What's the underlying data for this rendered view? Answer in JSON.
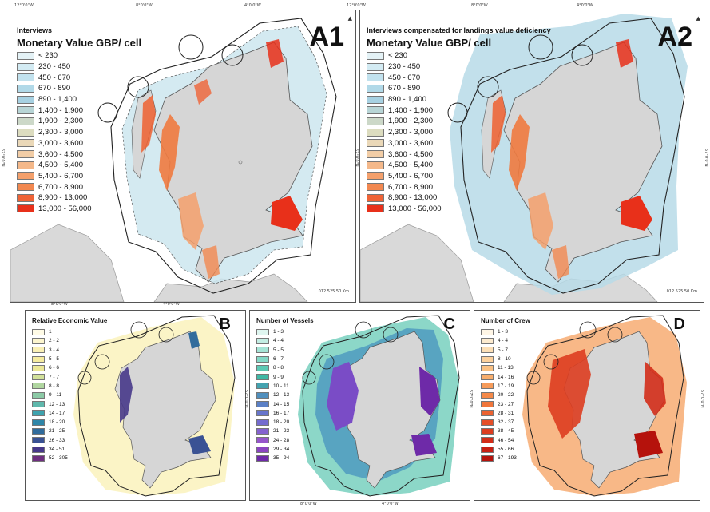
{
  "ticks": {
    "top_a1": [
      "12°0'0\"W",
      "8°0'0\"W",
      "4°0'0\"W"
    ],
    "top_a2": [
      "12°0'0\"W",
      "8°0'0\"W",
      "4°0'0\"W"
    ],
    "mid": [
      "8°0'0\"W",
      "4°0'0\"W"
    ],
    "bottom": [
      "8°0'0\"W",
      "4°0'0\"W"
    ],
    "lat_a1_left": "57°0'0\"N",
    "lat_a1_right": "57°0'0\"N",
    "lat_a2_right": "57°0'0\"N",
    "lat_b": "57°0'0\"N",
    "lat_c": "57°0'0\"N",
    "lat_d": "57°0'0\"N"
  },
  "panels": {
    "a1": {
      "label": "A1",
      "legend_title": "Interviews",
      "legend_subtitle": "Monetary Value GBP/ cell",
      "scale": "012.525   50 Km",
      "classes": [
        {
          "label": "< 230",
          "color": "#e4f2f6"
        },
        {
          "label": "230 - 450",
          "color": "#d3ebf3"
        },
        {
          "label": "450 - 670",
          "color": "#c2e2ee"
        },
        {
          "label": "670 - 890",
          "color": "#b1d9e8"
        },
        {
          "label": "890 - 1,400",
          "color": "#a7d1e2"
        },
        {
          "label": "1,400 - 1,900",
          "color": "#b8d5d6"
        },
        {
          "label": "1,900 - 2,300",
          "color": "#ccd8c8"
        },
        {
          "label": "2,300 - 3,000",
          "color": "#dcdcbf"
        },
        {
          "label": "3,000 - 3,600",
          "color": "#ead8b8"
        },
        {
          "label": "3,600 - 4,500",
          "color": "#f2cda6"
        },
        {
          "label": "4,500 - 5,400",
          "color": "#f4b88a"
        },
        {
          "label": "5,400 - 6,700",
          "color": "#f4a06c"
        },
        {
          "label": "6,700 - 8,900",
          "color": "#f28850"
        },
        {
          "label": "8,900 - 13,000",
          "color": "#ef6336"
        },
        {
          "label": "13,000 - 56,000",
          "color": "#e8301a"
        }
      ]
    },
    "a2": {
      "label": "A2",
      "legend_title": "Interviews compensated for landings value deficiency",
      "legend_subtitle": "Monetary Value GBP/ cell",
      "scale": "012.525   50 Km",
      "classes": [
        {
          "label": "< 230",
          "color": "#e4f2f6"
        },
        {
          "label": "230 - 450",
          "color": "#d3ebf3"
        },
        {
          "label": "450 - 670",
          "color": "#c2e2ee"
        },
        {
          "label": "670 - 890",
          "color": "#b1d9e8"
        },
        {
          "label": "890 - 1,400",
          "color": "#a7d1e2"
        },
        {
          "label": "1,400 - 1,900",
          "color": "#b8d5d6"
        },
        {
          "label": "1,900 - 2,300",
          "color": "#ccd8c8"
        },
        {
          "label": "2,300 - 3,000",
          "color": "#dcdcbf"
        },
        {
          "label": "3,000 - 3,600",
          "color": "#ead8b8"
        },
        {
          "label": "3,600 - 4,500",
          "color": "#f2cda6"
        },
        {
          "label": "4,500 - 5,400",
          "color": "#f4b88a"
        },
        {
          "label": "5,400 - 6,700",
          "color": "#f4a06c"
        },
        {
          "label": "6,700 - 8,900",
          "color": "#f28850"
        },
        {
          "label": "8,900 - 13,000",
          "color": "#ef6336"
        },
        {
          "label": "13,000 - 56,000",
          "color": "#e8301a"
        }
      ]
    },
    "b": {
      "label": "B",
      "legend_title": "Relative Economic Value",
      "classes": [
        {
          "label": "1",
          "color": "#fffbe6"
        },
        {
          "label": "2 - 2",
          "color": "#fdf6cf"
        },
        {
          "label": "3 - 4",
          "color": "#faf0b6"
        },
        {
          "label": "5 - 5",
          "color": "#f5eb9f"
        },
        {
          "label": "6 - 6",
          "color": "#ebe796"
        },
        {
          "label": "7 - 7",
          "color": "#d2e19a"
        },
        {
          "label": "8 - 8",
          "color": "#b0d6a0"
        },
        {
          "label": "9 - 11",
          "color": "#8ccaa6"
        },
        {
          "label": "12 - 13",
          "color": "#5fb8ac"
        },
        {
          "label": "14 - 17",
          "color": "#3ea3ae"
        },
        {
          "label": "18 - 20",
          "color": "#2f86a8"
        },
        {
          "label": "21 - 25",
          "color": "#316c9c"
        },
        {
          "label": "26 - 33",
          "color": "#3a5294"
        },
        {
          "label": "34 - 51",
          "color": "#47388a"
        },
        {
          "label": "52 - 305",
          "color": "#6e2f7f"
        }
      ]
    },
    "c": {
      "label": "C",
      "legend_title": "Number of Vessels",
      "classes": [
        {
          "label": "1 - 3",
          "color": "#dff6f0"
        },
        {
          "label": "4 - 4",
          "color": "#c4eee4"
        },
        {
          "label": "5 - 5",
          "color": "#a6e4d6"
        },
        {
          "label": "6 - 7",
          "color": "#84d8c6"
        },
        {
          "label": "8 - 8",
          "color": "#5dc9b4"
        },
        {
          "label": "9 - 9",
          "color": "#3fb8a5"
        },
        {
          "label": "10 - 11",
          "color": "#44a3b0"
        },
        {
          "label": "12 - 13",
          "color": "#508fbd"
        },
        {
          "label": "14 - 15",
          "color": "#5b80c6"
        },
        {
          "label": "16 - 17",
          "color": "#6775cc"
        },
        {
          "label": "18 - 20",
          "color": "#746bcf"
        },
        {
          "label": "21 - 23",
          "color": "#8562cf"
        },
        {
          "label": "24 - 28",
          "color": "#9656cb"
        },
        {
          "label": "29 - 34",
          "color": "#8a45c0"
        },
        {
          "label": "35 - 94",
          "color": "#6e2aa8"
        }
      ]
    },
    "d": {
      "label": "D",
      "legend_title": "Number of Crew",
      "classes": [
        {
          "label": "1 - 3",
          "color": "#fff6e6"
        },
        {
          "label": "4 - 4",
          "color": "#fdebcf"
        },
        {
          "label": "5 - 7",
          "color": "#fcdfb6"
        },
        {
          "label": "8 - 10",
          "color": "#fbd09c"
        },
        {
          "label": "11 - 13",
          "color": "#f9c083"
        },
        {
          "label": "14 - 16",
          "color": "#f8ae6d"
        },
        {
          "label": "17 - 19",
          "color": "#f69b5a"
        },
        {
          "label": "20 - 22",
          "color": "#f48949"
        },
        {
          "label": "23 - 27",
          "color": "#f1763b"
        },
        {
          "label": "28 - 31",
          "color": "#ec6230"
        },
        {
          "label": "32 - 37",
          "color": "#e54e27"
        },
        {
          "label": "38 - 45",
          "color": "#dd3d20"
        },
        {
          "label": "46 - 54",
          "color": "#d32d19"
        },
        {
          "label": "55 - 66",
          "color": "#c71f13"
        },
        {
          "label": "67 - 193",
          "color": "#b5120c"
        }
      ]
    }
  }
}
